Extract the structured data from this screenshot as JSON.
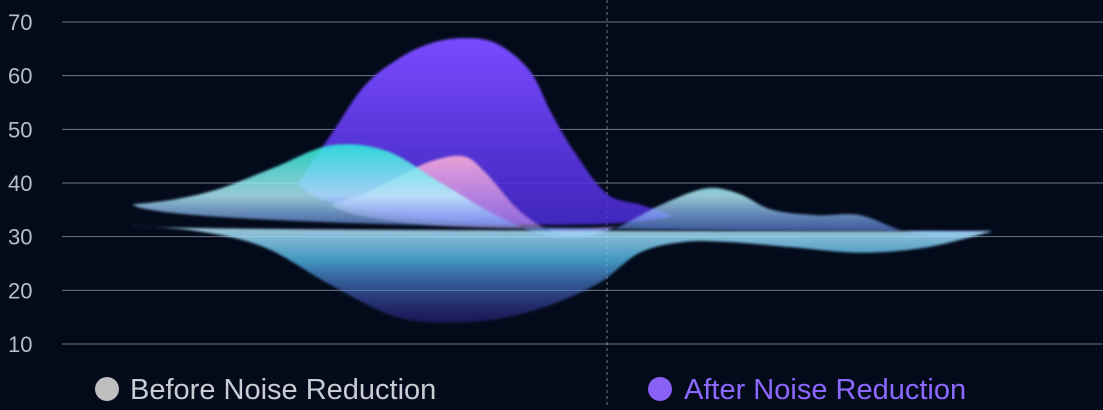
{
  "chart_data": {
    "type": "area",
    "yticks": [
      "70",
      "60",
      "50",
      "40",
      "30",
      "20",
      "10"
    ],
    "ylim": [
      10,
      70
    ],
    "xlim": [
      0,
      100
    ],
    "grid": true,
    "legend_position": "bottom",
    "legend": [
      {
        "label": "Before Noise Reduction",
        "color": "#bfbfbf"
      },
      {
        "label": "After Noise Reduction",
        "color": "#8a60f6"
      }
    ],
    "series": [
      {
        "color": "#6a3df0",
        "x": [
          27,
          30,
          33,
          36,
          39,
          42,
          45,
          48,
          50,
          52,
          55,
          58,
          61
        ],
        "y": [
          40,
          49,
          58,
          63,
          66,
          67,
          66,
          61,
          53,
          46,
          38,
          36,
          34
        ]
      },
      {
        "color": "#ff9ec8",
        "x": [
          30,
          33,
          36,
          39,
          42,
          44,
          47,
          50,
          53,
          56
        ],
        "y": [
          36,
          38,
          41,
          44,
          45,
          42,
          35,
          31,
          30,
          32
        ]
      },
      {
        "color": "#25e6d8",
        "x": [
          12,
          16,
          20,
          25,
          30,
          35,
          40,
          45,
          50,
          55,
          60,
          64,
          67,
          70,
          74,
          78,
          82,
          86,
          90
        ],
        "y": [
          36,
          37,
          39,
          43,
          47,
          46,
          40,
          34,
          30,
          31,
          36,
          39,
          38,
          35,
          34,
          34,
          31,
          30,
          31
        ]
      },
      {
        "color": "#4d78f3",
        "x": [
          12,
          18,
          24,
          30,
          36,
          42,
          48,
          54,
          58,
          62,
          66,
          72,
          78,
          84,
          90
        ],
        "y": [
          32,
          31,
          28,
          21,
          15,
          14,
          16,
          21,
          27,
          29,
          29,
          28,
          27,
          28,
          31
        ]
      }
    ]
  }
}
